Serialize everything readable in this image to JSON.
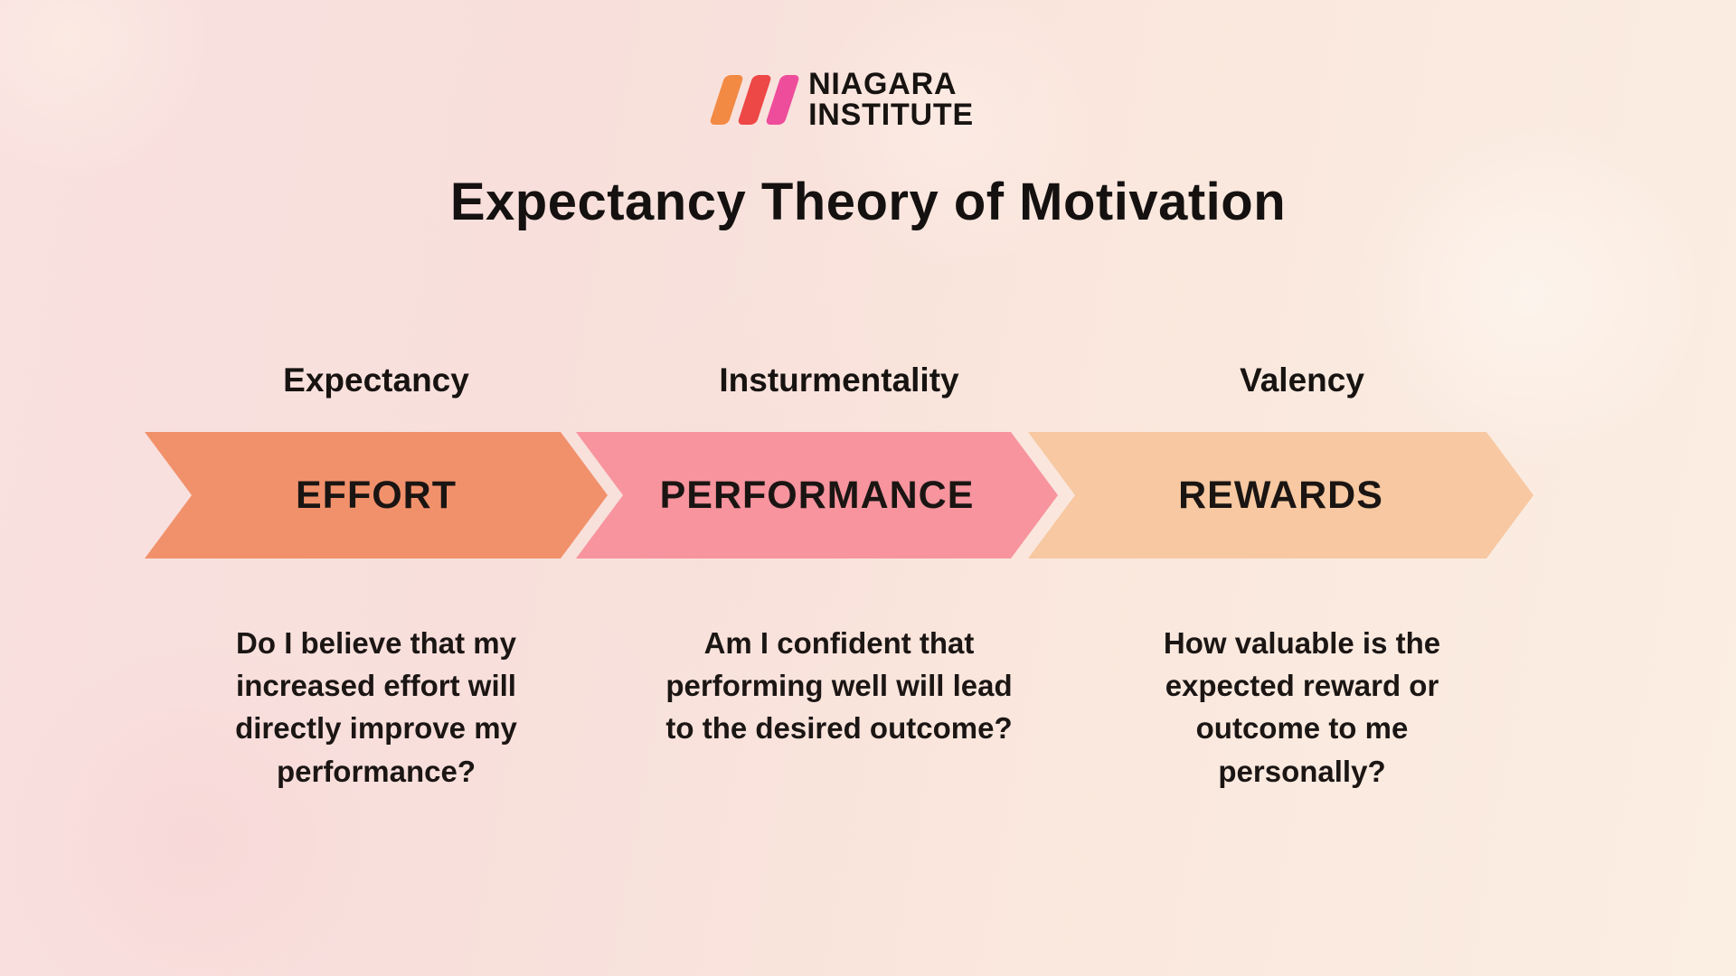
{
  "logo": {
    "alt": "Niagara Institute",
    "stripes": [
      "#F28A44",
      "#ED4746",
      "#EE4D9B"
    ],
    "wordmark_lines": [
      "NIAGARA",
      "INSTITUTE"
    ]
  },
  "title": "Expectancy Theory of Motivation",
  "colors": {
    "background_left": "#F9E1E0",
    "background_right": "#FBEEE3",
    "text": "#1B1614"
  },
  "steps": [
    {
      "label": "Expectancy",
      "arrow_label": "EFFORT",
      "arrow_color": "#F1916B",
      "question_lines": [
        "Do I believe that my",
        "increased effort will",
        "directly improve my",
        "performance?"
      ]
    },
    {
      "label": "Insturmentality",
      "arrow_label": "PERFORMANCE",
      "arrow_color": "#F7949E",
      "question_lines": [
        "Am I confident that",
        "performing well will lead",
        "to the desired outcome?"
      ]
    },
    {
      "label": "Valency",
      "arrow_label": "REWARDS",
      "arrow_color": "#F7C8A1",
      "question_lines": [
        "How valuable is the",
        "expected reward or",
        "outcome to me",
        "personally?"
      ]
    }
  ]
}
